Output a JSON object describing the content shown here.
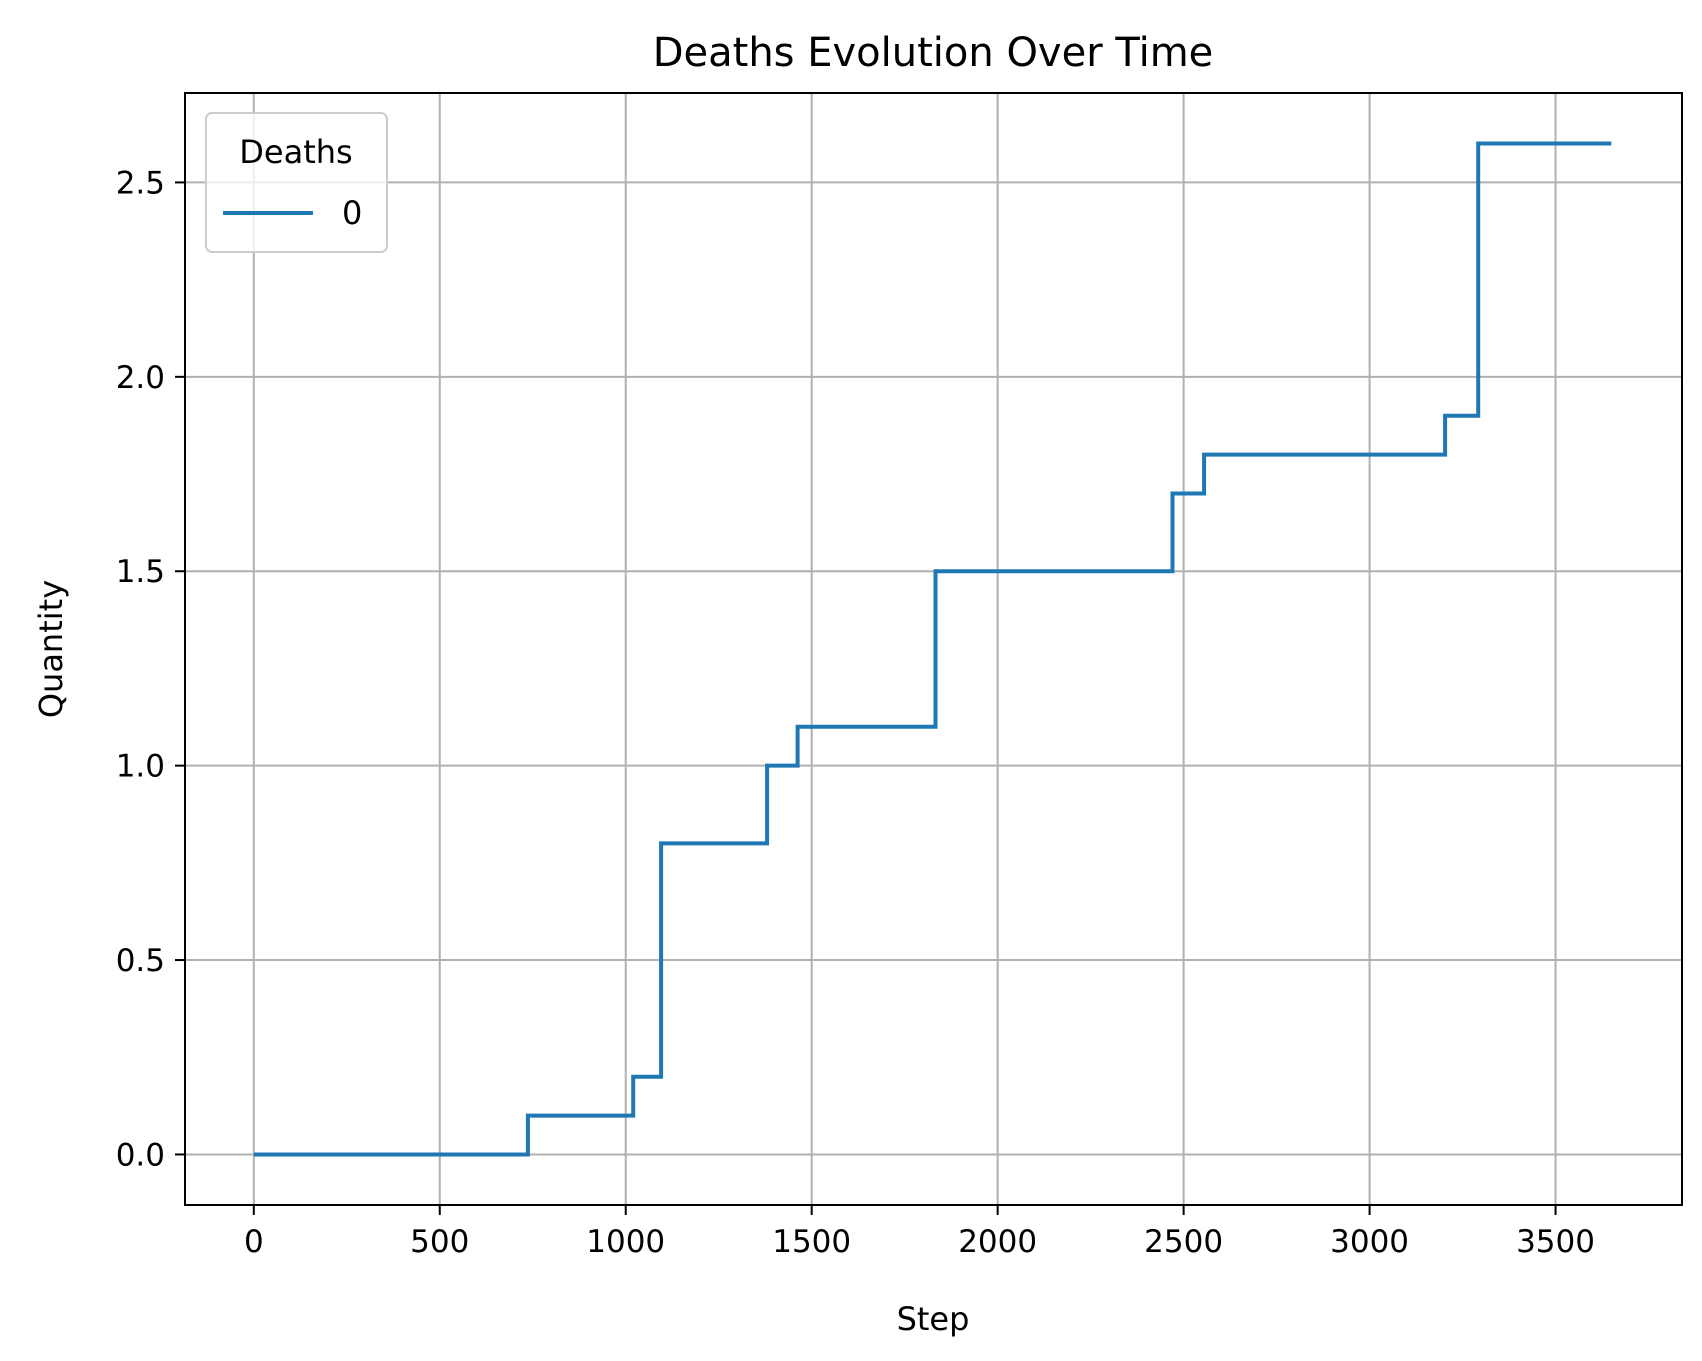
{
  "chart_data": {
    "type": "line",
    "title": "Deaths Evolution Over Time",
    "xlabel": "Step",
    "ylabel": "Quantity",
    "xlim": [
      -185,
      3840
    ],
    "ylim": [
      -0.13,
      2.73
    ],
    "xticks": [
      0,
      500,
      1000,
      1500,
      2000,
      2500,
      3000,
      3500
    ],
    "xtick_labels": [
      "0",
      "500",
      "1000",
      "1500",
      "2000",
      "2500",
      "3000",
      "3500"
    ],
    "yticks": [
      0.0,
      0.5,
      1.0,
      1.5,
      2.0,
      2.5
    ],
    "ytick_labels": [
      "0.0",
      "0.5",
      "1.0",
      "1.5",
      "2.0",
      "2.5"
    ],
    "grid": true,
    "legend": {
      "title": "Deaths",
      "placement": "top-left"
    },
    "series": [
      {
        "name": "0",
        "color": "#1f77b4",
        "drawstyle": "steps",
        "x": [
          0,
          737,
          1020,
          1095,
          1380,
          1462,
          1833,
          2470,
          2555,
          3203,
          3292,
          3650
        ],
        "y": [
          0.0,
          0.1,
          0.2,
          0.8,
          1.0,
          1.1,
          1.5,
          1.7,
          1.8,
          1.9,
          2.6,
          2.6
        ]
      }
    ]
  }
}
